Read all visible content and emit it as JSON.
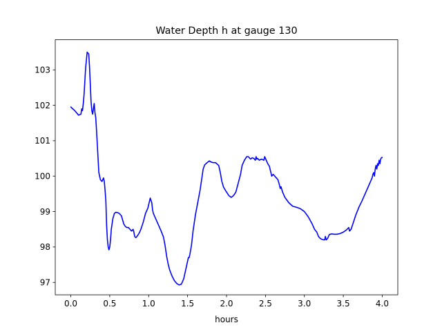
{
  "chart_data": {
    "type": "line",
    "title": "Water Depth h at gauge 130",
    "xlabel": "hours",
    "ylabel": "",
    "xlim": [
      -0.2,
      4.2
    ],
    "ylim": [
      96.65,
      103.85
    ],
    "x_ticks": [
      0.0,
      0.5,
      1.0,
      1.5,
      2.0,
      2.5,
      3.0,
      3.5,
      4.0
    ],
    "x_tick_labels": [
      "0.0",
      "0.5",
      "1.0",
      "1.5",
      "2.0",
      "2.5",
      "3.0",
      "3.5",
      "4.0"
    ],
    "y_ticks": [
      97,
      98,
      99,
      100,
      101,
      102,
      103
    ],
    "y_tick_labels": [
      "97",
      "98",
      "99",
      "100",
      "101",
      "102",
      "103"
    ],
    "grid": false,
    "series": [
      {
        "color": "#0000ff",
        "x": [
          0.0,
          0.05,
          0.1,
          0.13,
          0.14,
          0.15,
          0.16,
          0.17,
          0.19,
          0.21,
          0.23,
          0.24,
          0.25,
          0.26,
          0.27,
          0.28,
          0.29,
          0.3,
          0.31,
          0.32,
          0.33,
          0.34,
          0.35,
          0.36,
          0.38,
          0.4,
          0.42,
          0.43,
          0.44,
          0.45,
          0.46,
          0.47,
          0.48,
          0.49,
          0.5,
          0.51,
          0.52,
          0.54,
          0.56,
          0.58,
          0.6,
          0.62,
          0.65,
          0.68,
          0.7,
          0.72,
          0.74,
          0.76,
          0.78,
          0.8,
          0.81,
          0.82,
          0.83,
          0.84,
          0.86,
          0.88,
          0.9,
          0.93,
          0.96,
          0.99,
          1.02,
          1.04,
          1.05,
          1.06,
          1.08,
          1.1,
          1.13,
          1.16,
          1.19,
          1.21,
          1.23,
          1.25,
          1.27,
          1.3,
          1.33,
          1.36,
          1.39,
          1.42,
          1.45,
          1.47,
          1.5,
          1.51,
          1.52,
          1.53,
          1.55,
          1.57,
          1.58,
          1.6,
          1.63,
          1.66,
          1.68,
          1.7,
          1.72,
          1.75,
          1.78,
          1.8,
          1.83,
          1.86,
          1.9,
          1.92,
          1.94,
          1.96,
          1.98,
          2.0,
          2.03,
          2.06,
          2.09,
          2.12,
          2.15,
          2.18,
          2.2,
          2.23,
          2.26,
          2.28,
          2.3,
          2.31,
          2.32,
          2.33,
          2.35,
          2.37,
          2.38,
          2.39,
          2.4,
          2.42,
          2.45,
          2.48,
          2.49,
          2.5,
          2.51,
          2.53,
          2.55,
          2.57,
          2.58,
          2.6,
          2.62,
          2.64,
          2.66,
          2.68,
          2.69,
          2.7,
          2.72,
          2.75,
          2.8,
          2.85,
          2.9,
          2.95,
          3.0,
          3.05,
          3.1,
          3.13,
          3.16,
          3.18,
          3.2,
          3.22,
          3.25,
          3.26,
          3.27,
          3.28,
          3.29,
          3.3,
          3.32,
          3.35,
          3.38,
          3.42,
          3.46,
          3.5,
          3.54,
          3.57,
          3.58,
          3.6,
          3.63,
          3.66,
          3.7,
          3.74,
          3.78,
          3.82,
          3.85,
          3.87,
          3.88,
          3.89,
          3.9,
          3.91,
          3.92,
          3.93,
          3.94,
          3.95,
          3.96,
          3.97,
          3.98,
          3.99,
          4.0
        ],
        "y": [
          101.95,
          101.85,
          101.72,
          101.75,
          101.9,
          101.85,
          102.05,
          102.3,
          103.05,
          103.5,
          103.45,
          103.1,
          102.6,
          102.1,
          101.85,
          101.75,
          101.9,
          102.05,
          101.8,
          101.65,
          101.3,
          100.9,
          100.5,
          100.1,
          99.9,
          99.85,
          99.95,
          99.85,
          99.6,
          99.3,
          98.6,
          98.2,
          98.0,
          97.92,
          98.0,
          98.2,
          98.5,
          98.8,
          98.95,
          98.98,
          98.97,
          98.95,
          98.88,
          98.65,
          98.58,
          98.55,
          98.55,
          98.5,
          98.45,
          98.5,
          98.42,
          98.3,
          98.27,
          98.27,
          98.33,
          98.4,
          98.5,
          98.7,
          98.95,
          99.1,
          99.38,
          99.25,
          99.05,
          98.95,
          98.85,
          98.75,
          98.6,
          98.45,
          98.28,
          98.05,
          97.75,
          97.52,
          97.35,
          97.18,
          97.05,
          96.97,
          96.93,
          96.95,
          97.1,
          97.3,
          97.6,
          97.7,
          97.7,
          97.8,
          98.05,
          98.45,
          98.6,
          98.9,
          99.25,
          99.6,
          99.9,
          100.2,
          100.32,
          100.38,
          100.43,
          100.4,
          100.38,
          100.38,
          100.3,
          100.1,
          99.85,
          99.7,
          99.62,
          99.55,
          99.45,
          99.4,
          99.45,
          99.55,
          99.8,
          100.05,
          100.3,
          100.45,
          100.55,
          100.55,
          100.5,
          100.48,
          100.5,
          100.52,
          100.5,
          100.45,
          100.55,
          100.48,
          100.5,
          100.45,
          100.48,
          100.45,
          100.55,
          100.5,
          100.45,
          100.35,
          100.28,
          100.1,
          100.0,
          100.05,
          100.0,
          99.95,
          99.9,
          99.75,
          99.65,
          99.7,
          99.55,
          99.4,
          99.25,
          99.15,
          99.12,
          99.08,
          99.0,
          98.85,
          98.65,
          98.5,
          98.42,
          98.3,
          98.25,
          98.22,
          98.2,
          98.2,
          98.3,
          98.2,
          98.22,
          98.25,
          98.35,
          98.37,
          98.36,
          98.36,
          98.38,
          98.42,
          98.48,
          98.55,
          98.45,
          98.5,
          98.7,
          98.9,
          99.12,
          99.3,
          99.5,
          99.7,
          99.85,
          99.95,
          100.05,
          100.1,
          100.0,
          100.2,
          100.3,
          100.2,
          100.35,
          100.3,
          100.45,
          100.35,
          100.48,
          100.52,
          100.53
        ]
      }
    ]
  }
}
